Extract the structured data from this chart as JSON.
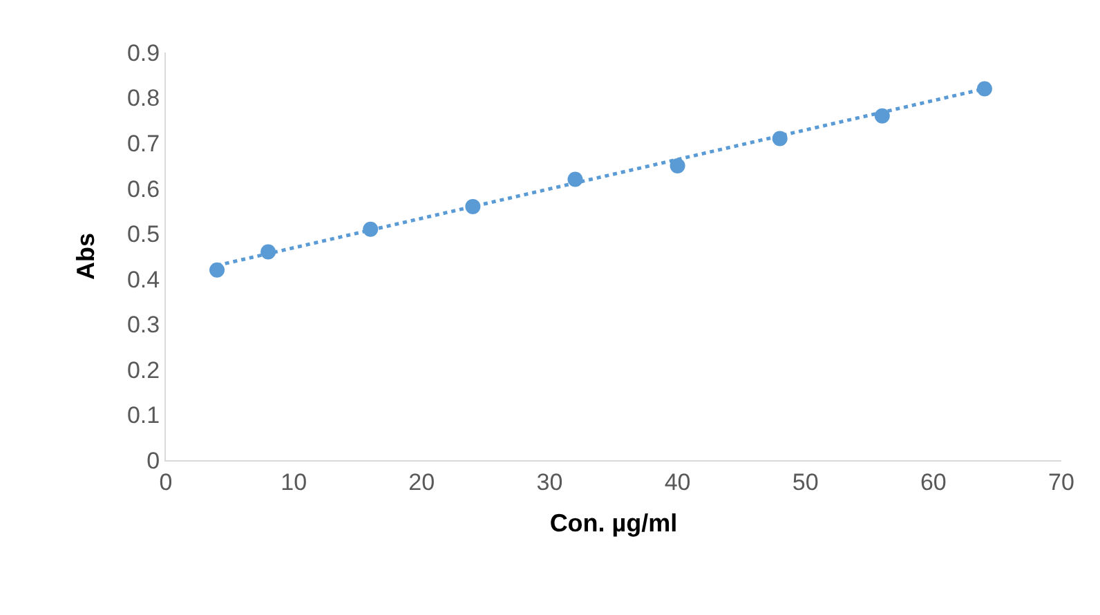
{
  "chart_data": {
    "type": "scatter",
    "xlabel": "Con. µg/ml",
    "ylabel": "Abs",
    "xlim": [
      0,
      70
    ],
    "xticks": [
      0,
      10,
      20,
      30,
      40,
      50,
      60,
      70
    ],
    "ylim": [
      0,
      0.9
    ],
    "yticks": [
      0,
      0.1,
      0.2,
      0.3,
      0.4,
      0.5,
      0.6,
      0.7,
      0.8,
      0.9
    ],
    "series": [
      {
        "marker": "circle",
        "color": "#5b9bd5",
        "x": [
          4,
          8,
          16,
          24,
          32,
          40,
          48,
          56,
          64
        ],
        "values": [
          0.42,
          0.46,
          0.51,
          0.56,
          0.62,
          0.65,
          0.71,
          0.76,
          0.82
        ]
      },
      {
        "type": "line",
        "marker": "none",
        "color": "#5b9bd5",
        "line_style": "dotted",
        "x": [
          4,
          64
        ],
        "values": [
          0.43,
          0.82
        ]
      }
    ]
  }
}
